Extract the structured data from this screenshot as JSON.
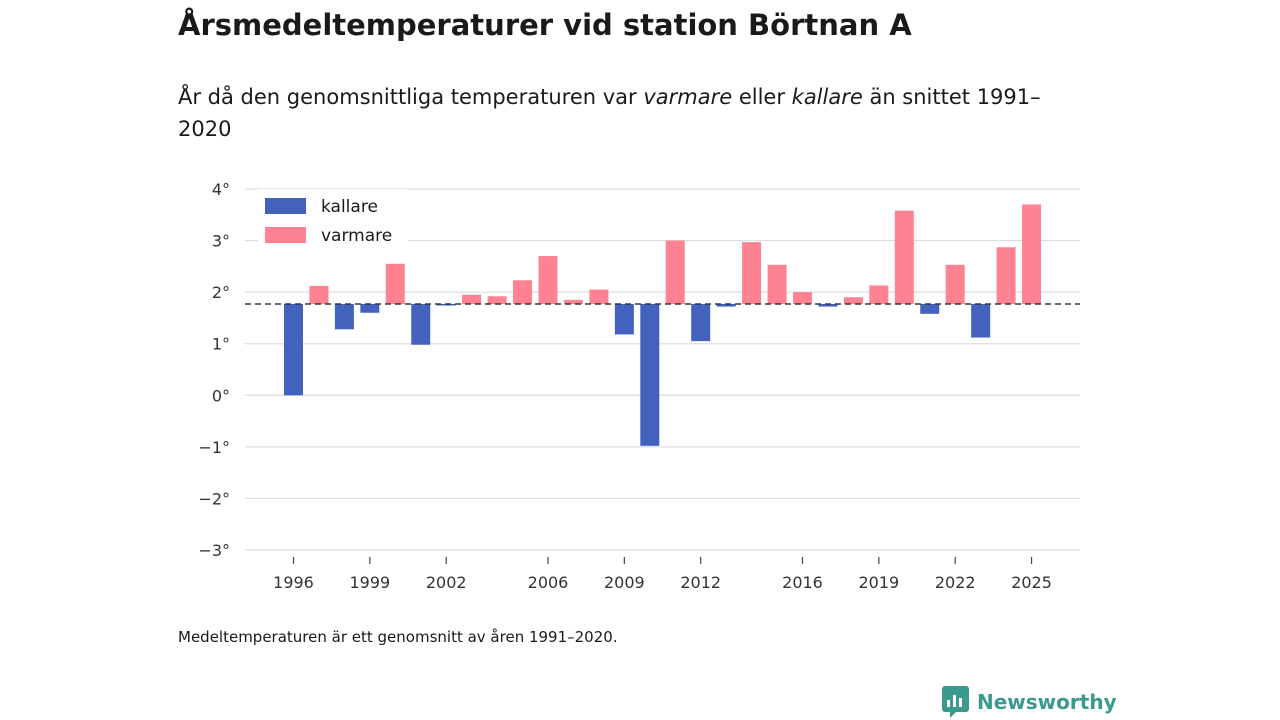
{
  "page": {
    "title": "Årsmedeltemperaturer vid station Börtnan A",
    "subtitle_before": "År då den genomsnittliga temperaturen var ",
    "subtitle_warm": "varmare",
    "subtitle_mid": " eller ",
    "subtitle_cold": "kallare",
    "subtitle_after": " än snittet 1991–2020",
    "footnote": "Medeltemperaturen är ett genomsnitt av åren 1991–2020.",
    "brand": "Newsworthy"
  },
  "colors": {
    "cold": "#4262be",
    "warm": "#ff8292",
    "brand": "#3a9a8e",
    "grid": "#dddddd",
    "baseline": "#333333"
  },
  "chart_data": {
    "type": "bar",
    "title": "Årsmedeltemperaturer vid station Börtnan A",
    "xlabel": "",
    "ylabel": "",
    "baseline": 1.77,
    "baseline_note": "Medeltemperaturen 1991–2020",
    "ylim": [
      -3,
      4
    ],
    "yticks": [
      -3,
      -2,
      -1,
      0,
      1,
      2,
      3,
      4
    ],
    "ytick_suffix": "°",
    "xticks": [
      1996,
      1999,
      2002,
      2006,
      2009,
      2012,
      2016,
      2019,
      2022,
      2025
    ],
    "legend": [
      {
        "key": "cold",
        "label": "kallare"
      },
      {
        "key": "warm",
        "label": "varmare"
      }
    ],
    "legend_position": "top-left",
    "categories": [
      1996,
      1997,
      1998,
      1999,
      2000,
      2001,
      2002,
      2003,
      2004,
      2005,
      2006,
      2007,
      2008,
      2009,
      2010,
      2011,
      2012,
      2013,
      2014,
      2015,
      2016,
      2017,
      2018,
      2019,
      2020,
      2021,
      2022,
      2023,
      2024,
      2025
    ],
    "values": [
      0.0,
      2.12,
      1.28,
      1.6,
      2.55,
      0.98,
      1.75,
      1.95,
      1.92,
      2.23,
      2.7,
      1.85,
      2.05,
      1.18,
      -0.98,
      3.0,
      1.05,
      1.72,
      2.97,
      2.53,
      2.0,
      1.72,
      1.9,
      2.13,
      3.58,
      1.58,
      2.53,
      1.12,
      2.87,
      3.7
    ]
  }
}
